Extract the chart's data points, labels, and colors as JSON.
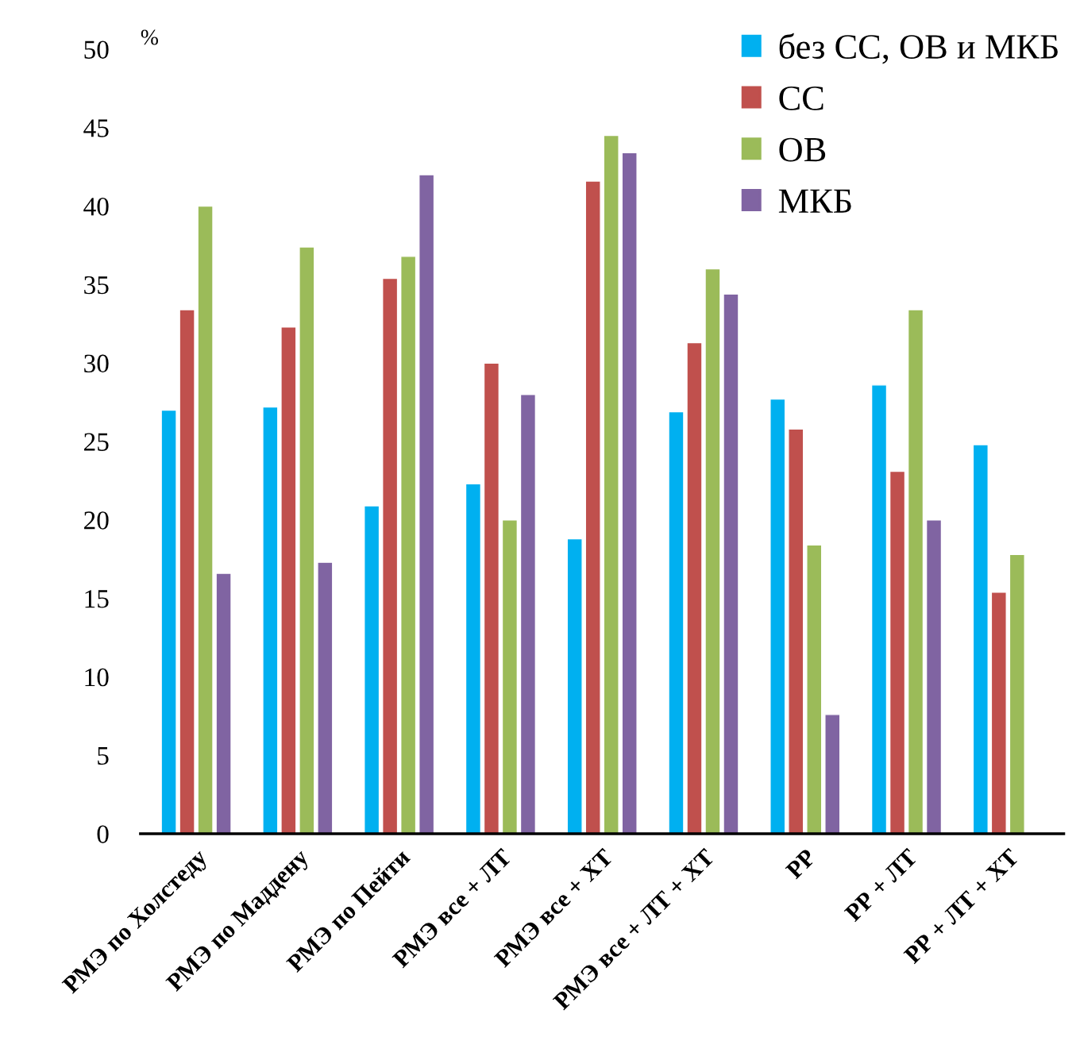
{
  "chart_data": {
    "type": "bar",
    "ylabel": "%",
    "categories": [
      "РМЭ по Холстеду",
      "РМЭ по Маддену",
      "РМЭ по Пейти",
      "РМЭ все + ЛТ",
      "РМЭ все + ХТ",
      "РМЭ все + ЛТ + ХТ",
      "РР",
      "РР + ЛТ",
      "РР + ЛТ + ХТ"
    ],
    "series": [
      {
        "name": "без СС, ОВ и МКБ",
        "color": "#00b0f0",
        "values": [
          27.0,
          27.2,
          20.9,
          22.3,
          18.8,
          26.9,
          27.7,
          28.6,
          24.8
        ]
      },
      {
        "name": "СС",
        "color": "#c0504d",
        "values": [
          33.4,
          32.3,
          35.4,
          30.0,
          41.6,
          31.3,
          25.8,
          23.1,
          15.4
        ]
      },
      {
        "name": "ОВ",
        "color": "#9bbb59",
        "values": [
          40.0,
          37.4,
          36.8,
          20.0,
          44.5,
          36.0,
          18.4,
          33.4,
          17.8
        ]
      },
      {
        "name": "МКБ",
        "color": "#8064a2",
        "values": [
          16.6,
          17.3,
          42.0,
          28.0,
          43.4,
          34.4,
          7.6,
          20.0,
          null
        ]
      }
    ],
    "ylim": [
      0,
      50
    ],
    "yticks": [
      0,
      5,
      10,
      15,
      20,
      25,
      30,
      35,
      40,
      45,
      50
    ],
    "grid": false,
    "legend": "top right"
  }
}
